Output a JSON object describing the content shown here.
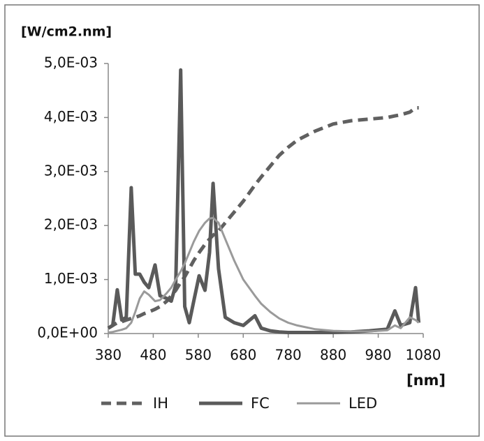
{
  "chart_data": {
    "type": "line",
    "y_label": "[W/cm2.nm]",
    "x_label": "[nm]",
    "x": [
      380,
      390,
      400,
      410,
      420,
      431,
      440,
      450,
      460,
      470,
      484,
      495,
      510,
      520,
      530,
      541,
      550,
      560,
      570,
      582,
      595,
      605,
      613,
      625,
      640,
      660,
      680,
      706,
      720,
      740,
      760,
      780,
      800,
      840,
      880,
      920,
      960,
      1000,
      1017,
      1030,
      1050,
      1063,
      1070
    ],
    "series": [
      {
        "name": "IH",
        "color": "#606060",
        "dash": true,
        "width": 5,
        "values": [
          0.0001,
          0.00015,
          0.0002,
          0.00022,
          0.00025,
          0.00028,
          0.0003,
          0.00033,
          0.00037,
          0.0004,
          0.00045,
          0.0005,
          0.0006,
          0.0007,
          0.0008,
          0.00095,
          0.00105,
          0.0012,
          0.00135,
          0.0015,
          0.00165,
          0.00175,
          0.00182,
          0.0019,
          0.00205,
          0.00225,
          0.00245,
          0.00275,
          0.0029,
          0.0031,
          0.0033,
          0.00345,
          0.00358,
          0.00375,
          0.00388,
          0.00394,
          0.00397,
          0.004,
          0.00403,
          0.00405,
          0.0041,
          0.00418,
          0.00418
        ]
      },
      {
        "name": "FC",
        "color": "#5a5a5a",
        "dash": false,
        "width": 5,
        "values": [
          0.0001,
          0.00015,
          0.00081,
          0.00025,
          0.0003,
          0.0027,
          0.0011,
          0.0011,
          0.00095,
          0.00085,
          0.00127,
          0.0007,
          0.00065,
          0.0006,
          0.0009,
          0.00488,
          0.0005,
          0.0002,
          0.0006,
          0.00107,
          0.0008,
          0.0015,
          0.00278,
          0.0012,
          0.0003,
          0.0002,
          0.00015,
          0.00033,
          0.0001,
          5e-05,
          3e-05,
          2e-05,
          2e-05,
          2e-05,
          2e-05,
          3e-05,
          5e-05,
          8e-05,
          0.00042,
          0.00015,
          0.0002,
          0.00085,
          0.0002
        ]
      },
      {
        "name": "LED",
        "color": "#9a9a9a",
        "dash": false,
        "width": 3,
        "values": [
          2e-05,
          3e-05,
          5e-05,
          7e-05,
          0.0001,
          0.0002,
          0.0004,
          0.00065,
          0.00078,
          0.00072,
          0.0006,
          0.00062,
          0.00075,
          0.00085,
          0.001,
          0.00115,
          0.0013,
          0.0015,
          0.0017,
          0.0019,
          0.00205,
          0.00213,
          0.00214,
          0.00205,
          0.00175,
          0.00135,
          0.001,
          0.0007,
          0.00055,
          0.0004,
          0.00028,
          0.0002,
          0.00015,
          8e-05,
          5e-05,
          4e-05,
          4e-05,
          6e-05,
          0.00015,
          0.0001,
          0.0003,
          0.00025,
          0.0002
        ]
      }
    ],
    "xlim": [
      380,
      1080
    ],
    "xticks": [
      380,
      480,
      580,
      680,
      780,
      880,
      980,
      1080
    ],
    "ylim": [
      0,
      0.005
    ],
    "yticks": [
      {
        "value": 0,
        "label": "0,0E+00"
      },
      {
        "value": 0.001,
        "label": "1,0E-03"
      },
      {
        "value": 0.002,
        "label": "2,0E-03"
      },
      {
        "value": 0.003,
        "label": "3,0E-03"
      },
      {
        "value": 0.004,
        "label": "4,0E-03"
      },
      {
        "value": 0.005,
        "label": "5,0E-03"
      }
    ],
    "grid": false
  }
}
